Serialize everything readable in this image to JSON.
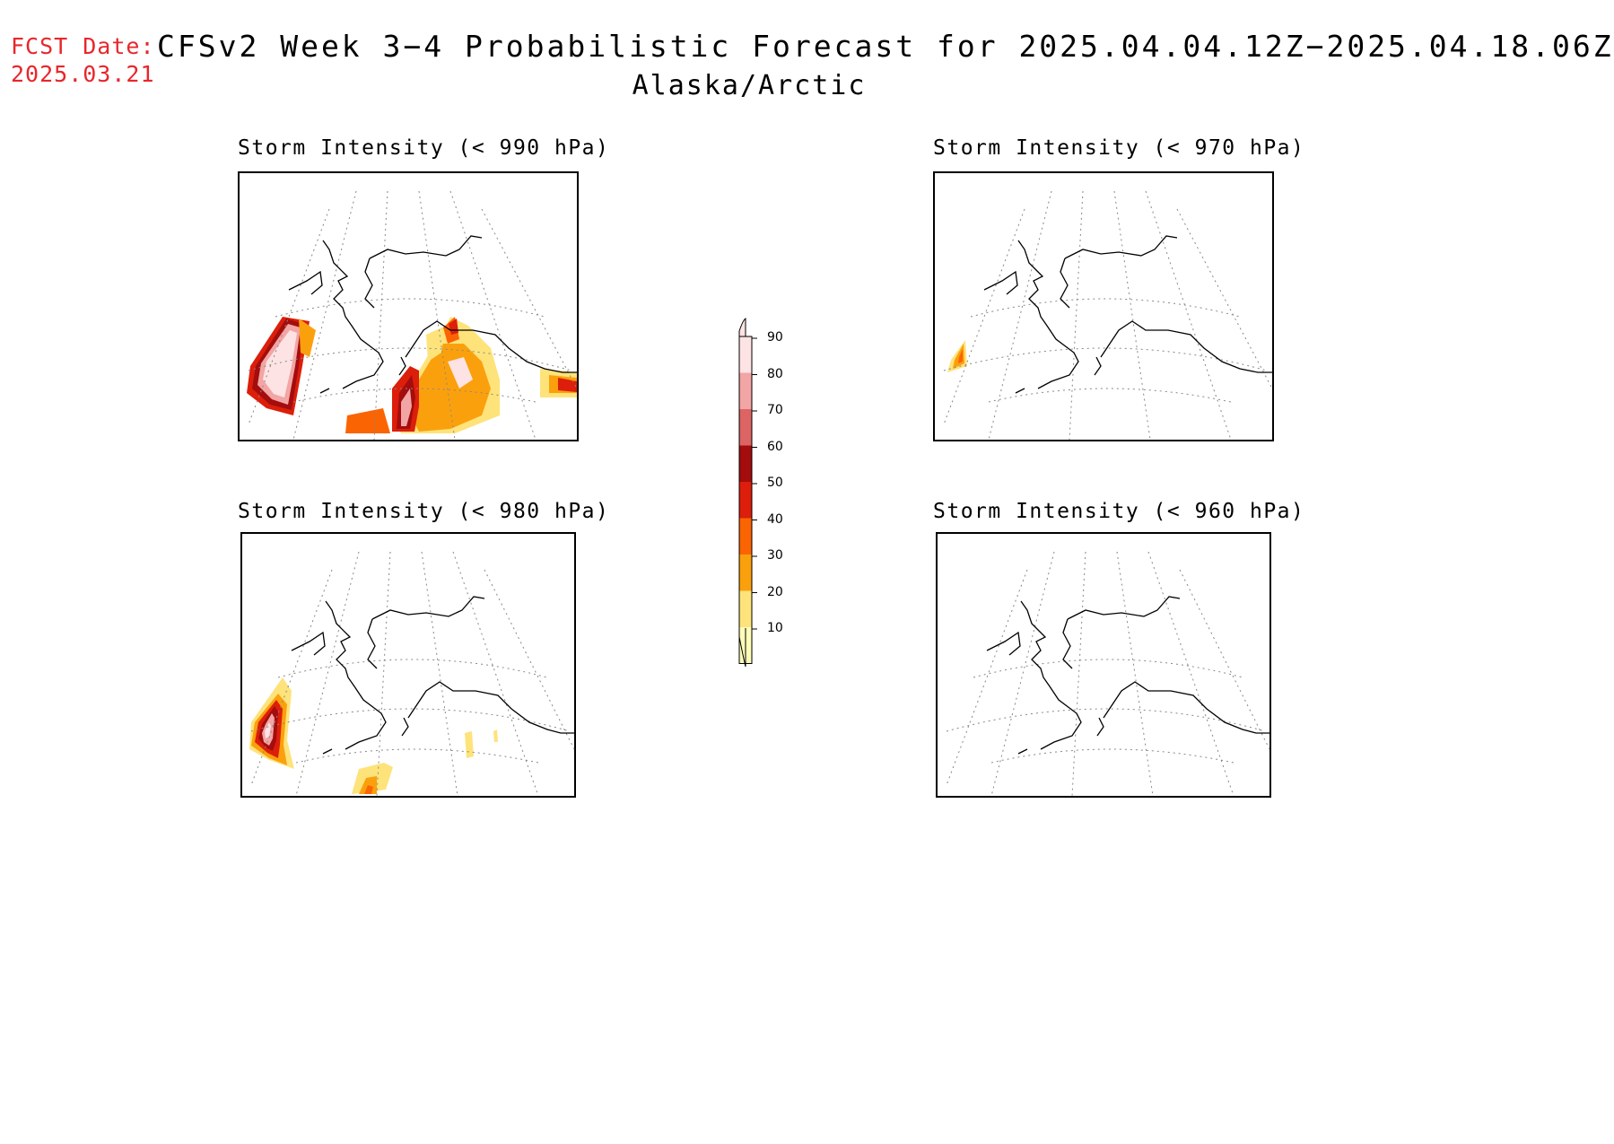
{
  "header": {
    "fcst_label": "FCST Date:",
    "fcst_date": "2025.03.21",
    "title": "CFSv2 Week 3−4 Probabilistic Forecast for 2025.04.04.12Z−2025.04.18.06Z",
    "subtitle": "Alaska/Arctic"
  },
  "panels": [
    {
      "title": "Storm Intensity (< 990 hPa)"
    },
    {
      "title": "Storm Intensity (< 970 hPa)"
    },
    {
      "title": "Storm Intensity (< 980 hPa)"
    },
    {
      "title": "Storm Intensity (< 960 hPa)"
    }
  ],
  "colorbar": {
    "labels": [
      "90",
      "80",
      "70",
      "60",
      "50",
      "40",
      "30",
      "20",
      "10"
    ],
    "colors": [
      "#fde3e3",
      "#f2a5a5",
      "#dd6464",
      "#a30d0d",
      "#dc1e0a",
      "#fb6403",
      "#fba00d",
      "#fde37a",
      "#fefcb9"
    ]
  }
}
